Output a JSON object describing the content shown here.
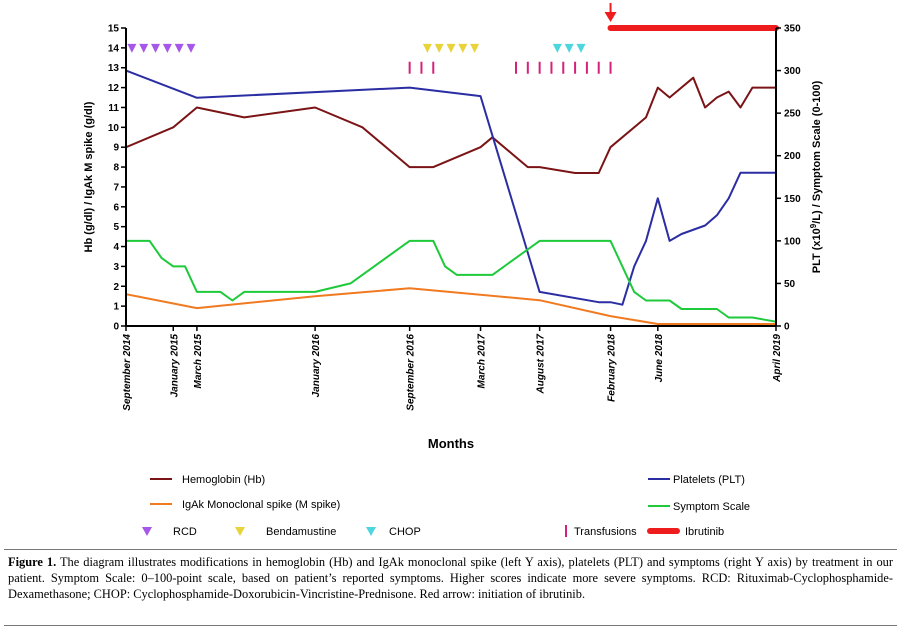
{
  "chart_data": {
    "type": "line",
    "xlabel": "Months",
    "ylabel_left": "Hb (g/dl)  /  IgAk M spike (g/dl)",
    "ylabel_right_prefix": "PLT (x10",
    "ylabel_right_sup": "9",
    "ylabel_right_suffix": "/L)  /  Symptom Scale (0-100)",
    "ylim_left": [
      0,
      15
    ],
    "ylim_right": [
      0,
      350
    ],
    "xlim": [
      0,
      55
    ],
    "left_ticks": [
      "0",
      "1",
      "2",
      "3",
      "4",
      "5",
      "6",
      "7",
      "8",
      "9",
      "10",
      "11",
      "12",
      "13",
      "14",
      "15"
    ],
    "right_ticks": [
      "0",
      "50",
      "100",
      "150",
      "200",
      "250",
      "300",
      "350"
    ],
    "x_ticks": [
      {
        "label": "September 2014",
        "x": 0
      },
      {
        "label": "January 2015",
        "x": 4
      },
      {
        "label": "March 2015",
        "x": 6
      },
      {
        "label": "January 2016",
        "x": 16
      },
      {
        "label": "September 2016",
        "x": 24
      },
      {
        "label": "March 2017",
        "x": 30
      },
      {
        "label": "August 2017",
        "x": 35
      },
      {
        "label": "February 2018",
        "x": 41
      },
      {
        "label": "June 2018",
        "x": 45
      },
      {
        "label": "April 2019",
        "x": 55
      }
    ],
    "series": [
      {
        "name": "Hemoglobin (Hb)",
        "axis": "left",
        "color": "#7b1416",
        "points": [
          [
            0,
            9
          ],
          [
            4,
            10
          ],
          [
            6,
            11
          ],
          [
            10,
            10.5
          ],
          [
            16,
            11
          ],
          [
            20,
            10
          ],
          [
            24,
            8
          ],
          [
            26,
            8
          ],
          [
            30,
            9
          ],
          [
            31,
            9.5
          ],
          [
            34,
            8
          ],
          [
            35,
            8
          ],
          [
            38,
            7.7
          ],
          [
            40,
            7.7
          ],
          [
            41,
            9
          ],
          [
            44,
            10.5
          ],
          [
            45,
            12
          ],
          [
            46,
            11.5
          ],
          [
            48,
            12.5
          ],
          [
            49,
            11
          ],
          [
            50,
            11.5
          ],
          [
            51,
            11.8
          ],
          [
            52,
            11
          ],
          [
            53,
            12
          ],
          [
            55,
            12
          ]
        ]
      },
      {
        "name": "IgAk Monoclonal spike (M spike)",
        "axis": "left",
        "color": "#f07a20",
        "points": [
          [
            0,
            1.6
          ],
          [
            6,
            0.9
          ],
          [
            16,
            1.5
          ],
          [
            24,
            1.9
          ],
          [
            35,
            1.3
          ],
          [
            41,
            0.5
          ],
          [
            45,
            0.1
          ],
          [
            55,
            0.1
          ]
        ]
      },
      {
        "name": "Platelets (PLT)",
        "axis": "right",
        "color": "#2b2ea3",
        "points": [
          [
            0,
            300
          ],
          [
            6,
            268
          ],
          [
            24,
            280
          ],
          [
            30,
            270
          ],
          [
            35,
            40
          ],
          [
            40,
            28
          ],
          [
            41,
            28
          ],
          [
            42,
            25
          ],
          [
            43,
            70
          ],
          [
            44,
            100
          ],
          [
            45,
            150
          ],
          [
            46,
            100
          ],
          [
            47,
            108
          ],
          [
            49,
            118
          ],
          [
            50,
            130
          ],
          [
            51,
            150
          ],
          [
            52,
            180
          ],
          [
            55,
            180
          ]
        ]
      },
      {
        "name": "Symptom Scale",
        "axis": "right",
        "color": "#1ec93a",
        "points": [
          [
            0,
            100
          ],
          [
            2,
            100
          ],
          [
            3,
            80
          ],
          [
            4,
            70
          ],
          [
            5,
            70
          ],
          [
            6,
            40
          ],
          [
            8,
            40
          ],
          [
            9,
            30
          ],
          [
            10,
            40
          ],
          [
            16,
            40
          ],
          [
            19,
            50
          ],
          [
            24,
            100
          ],
          [
            26,
            100
          ],
          [
            27,
            70
          ],
          [
            28,
            60
          ],
          [
            31,
            60
          ],
          [
            35,
            100
          ],
          [
            41,
            100
          ],
          [
            43,
            40
          ],
          [
            44,
            30
          ],
          [
            46,
            30
          ],
          [
            47,
            20
          ],
          [
            50,
            20
          ],
          [
            51,
            10
          ],
          [
            53,
            10
          ],
          [
            55,
            5
          ]
        ]
      }
    ],
    "markers": [
      {
        "name": "RCD",
        "shape": "triangle-down",
        "color": "#a757e8",
        "y": 14,
        "x": [
          0.5,
          1.5,
          2.5,
          3.5,
          4.5,
          5.5
        ]
      },
      {
        "name": "Bendamustine",
        "shape": "triangle-down",
        "color": "#e8d43a",
        "y": 14,
        "x": [
          25.5,
          26.5,
          27.5,
          28.5,
          29.5
        ]
      },
      {
        "name": "CHOP",
        "shape": "triangle-down",
        "color": "#4dd6e0",
        "y": 14,
        "x": [
          36.5,
          37.5,
          38.5
        ]
      },
      {
        "name": "Transfusions",
        "shape": "bar",
        "color": "#d4217a",
        "y": 13,
        "x": [
          24,
          25,
          26,
          33,
          34,
          35,
          36,
          37,
          38,
          39,
          40,
          41
        ]
      }
    ],
    "ibrutinib": {
      "name": "Ibrutinib",
      "color": "#ee1c1c",
      "x_start": 41,
      "x_end": 55,
      "y_right": 350
    },
    "arrow": {
      "x": 41,
      "label": "Red arrow: initiation of ibrutinib"
    },
    "legend": [
      {
        "label": "Hemoglobin (Hb)",
        "kind": "line",
        "color": "#7b1416"
      },
      {
        "label": "Platelets (PLT)",
        "kind": "line",
        "color": "#2b2ea3"
      },
      {
        "label": "IgAk Monoclonal spike (M spike)",
        "kind": "line",
        "color": "#f07a20"
      },
      {
        "label": "Symptom Scale",
        "kind": "line",
        "color": "#1ec93a"
      },
      {
        "label": "RCD",
        "kind": "triangle",
        "color": "#a757e8"
      },
      {
        "label": "Bendamustine",
        "kind": "triangle",
        "color": "#e8d43a"
      },
      {
        "label": "CHOP",
        "kind": "triangle",
        "color": "#4dd6e0"
      },
      {
        "label": "Transfusions",
        "kind": "bar",
        "color": "#d4217a"
      },
      {
        "label": "Ibrutinib",
        "kind": "thick",
        "color": "#ee1c1c"
      }
    ]
  },
  "caption": {
    "label": "Figure 1.",
    "text": " The diagram illustrates modifications in hemoglobin (Hb) and IgAk monoclonal spike (left Y axis), platelets (PLT) and symptoms (right Y axis) by treatment in our patient. Symptom Scale: 0–100-point scale, based on patient’s reported symptoms. Higher scores indicate more severe symptoms. RCD: Rituximab-Cyclophosphamide-Dexamethasone; CHOP: Cyclophosphamide-Doxorubicin-Vincristine-Prednisone. Red arrow: initiation of ibrutinib."
  }
}
